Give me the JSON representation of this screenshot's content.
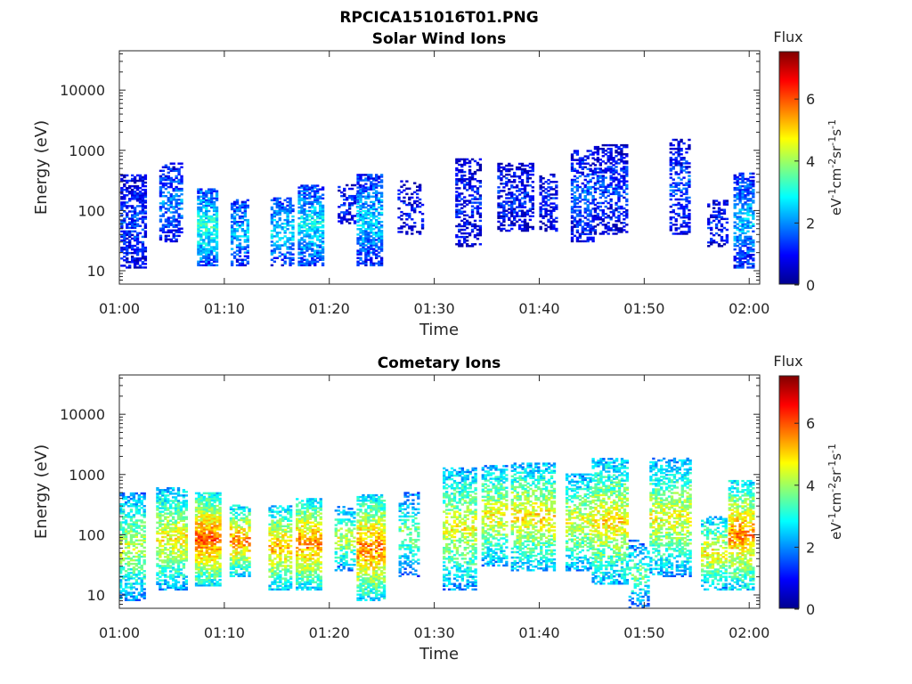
{
  "figure_title": "RPCICA151016T01.PNG",
  "chart_data": [
    {
      "type": "heatmap",
      "title": "Solar Wind Ions",
      "xlabel": "Time",
      "ylabel": "Energy (eV)",
      "x_ticks": [
        "01:00",
        "01:10",
        "01:20",
        "01:30",
        "01:40",
        "01:50",
        "02:00"
      ],
      "y_ticks": [
        "10",
        "100",
        "1000",
        "10000"
      ],
      "x_range_minutes": [
        0,
        61
      ],
      "y_scale": "log",
      "y_range_eV": [
        6,
        45000
      ],
      "colorbar": {
        "title": "Flux",
        "label": "eV-1cm-2sr-1s-1",
        "ticks": [
          "0",
          "2",
          "4",
          "6"
        ],
        "range": [
          0,
          7.5
        ],
        "colormap": "jet"
      },
      "activity": [
        {
          "t0": 0.1,
          "t1": 2.6,
          "e_lo": 11,
          "e_hi": 380,
          "flux": 1.4,
          "density": 0.6
        },
        {
          "t0": 3.8,
          "t1": 6.0,
          "e_lo": 30,
          "e_hi": 600,
          "flux": 1.9,
          "density": 0.55
        },
        {
          "t0": 7.4,
          "t1": 9.4,
          "e_lo": 12,
          "e_hi": 220,
          "flux": 3.2,
          "density": 0.75
        },
        {
          "t0": 10.6,
          "t1": 12.2,
          "e_lo": 12,
          "e_hi": 150,
          "flux": 2.3,
          "density": 0.6
        },
        {
          "t0": 14.4,
          "t1": 16.5,
          "e_lo": 12,
          "e_hi": 160,
          "flux": 2.6,
          "density": 0.55
        },
        {
          "t0": 17.0,
          "t1": 19.3,
          "e_lo": 12,
          "e_hi": 260,
          "flux": 2.8,
          "density": 0.7
        },
        {
          "t0": 20.8,
          "t1": 23.0,
          "e_lo": 60,
          "e_hi": 260,
          "flux": 1.3,
          "density": 0.35
        },
        {
          "t0": 22.6,
          "t1": 25.0,
          "e_lo": 12,
          "e_hi": 400,
          "flux": 2.5,
          "density": 0.65
        },
        {
          "t0": 26.5,
          "t1": 29.0,
          "e_lo": 40,
          "e_hi": 300,
          "flux": 1.0,
          "density": 0.3
        },
        {
          "t0": 32.0,
          "t1": 34.3,
          "e_lo": 25,
          "e_hi": 700,
          "flux": 1.1,
          "density": 0.45
        },
        {
          "t0": 36.0,
          "t1": 39.5,
          "e_lo": 45,
          "e_hi": 600,
          "flux": 1.2,
          "density": 0.5
        },
        {
          "t0": 40.0,
          "t1": 41.6,
          "e_lo": 45,
          "e_hi": 400,
          "flux": 1.2,
          "density": 0.45
        },
        {
          "t0": 43.0,
          "t1": 45.2,
          "e_lo": 30,
          "e_hi": 1000,
          "flux": 1.7,
          "density": 0.55
        },
        {
          "t0": 45.2,
          "t1": 48.3,
          "e_lo": 40,
          "e_hi": 1200,
          "flux": 1.4,
          "density": 0.5
        },
        {
          "t0": 52.4,
          "t1": 54.2,
          "e_lo": 40,
          "e_hi": 1500,
          "flux": 1.5,
          "density": 0.5
        },
        {
          "t0": 56.0,
          "t1": 58.0,
          "e_lo": 25,
          "e_hi": 150,
          "flux": 1.2,
          "density": 0.45
        },
        {
          "t0": 58.5,
          "t1": 60.3,
          "e_lo": 11,
          "e_hi": 400,
          "flux": 2.4,
          "density": 0.65
        }
      ]
    },
    {
      "type": "heatmap",
      "title": "Cometary Ions",
      "xlabel": "Time",
      "ylabel": "Energy (eV)",
      "x_ticks": [
        "01:00",
        "01:10",
        "01:20",
        "01:30",
        "01:40",
        "01:50",
        "02:00"
      ],
      "y_ticks": [
        "10",
        "100",
        "1000",
        "10000"
      ],
      "x_range_minutes": [
        0,
        61
      ],
      "y_scale": "log",
      "y_range_eV": [
        6,
        45000
      ],
      "colorbar": {
        "title": "Flux",
        "label": "eV-1cm-2sr-1s-1",
        "ticks": [
          "0",
          "2",
          "4",
          "6"
        ],
        "range": [
          0,
          7.5
        ],
        "colormap": "jet"
      },
      "activity": [
        {
          "t0": 0.0,
          "t1": 2.5,
          "e_lo": 8,
          "e_hi": 500,
          "flux": 4.3,
          "density": 0.55
        },
        {
          "t0": 3.5,
          "t1": 6.5,
          "e_lo": 12,
          "e_hi": 600,
          "flux": 4.8,
          "density": 0.65
        },
        {
          "t0": 7.2,
          "t1": 9.6,
          "e_lo": 14,
          "e_hi": 500,
          "flux": 6.0,
          "density": 0.85
        },
        {
          "t0": 10.5,
          "t1": 12.3,
          "e_lo": 20,
          "e_hi": 300,
          "flux": 5.6,
          "density": 0.65
        },
        {
          "t0": 14.2,
          "t1": 16.3,
          "e_lo": 12,
          "e_hi": 300,
          "flux": 5.3,
          "density": 0.6
        },
        {
          "t0": 16.8,
          "t1": 19.3,
          "e_lo": 12,
          "e_hi": 400,
          "flux": 5.7,
          "density": 0.7
        },
        {
          "t0": 20.5,
          "t1": 22.3,
          "e_lo": 25,
          "e_hi": 300,
          "flux": 4.3,
          "density": 0.45
        },
        {
          "t0": 22.6,
          "t1": 25.3,
          "e_lo": 8,
          "e_hi": 450,
          "flux": 5.7,
          "density": 0.7
        },
        {
          "t0": 26.6,
          "t1": 28.6,
          "e_lo": 20,
          "e_hi": 500,
          "flux": 3.8,
          "density": 0.4
        },
        {
          "t0": 30.8,
          "t1": 34.0,
          "e_lo": 12,
          "e_hi": 1300,
          "flux": 4.6,
          "density": 0.55
        },
        {
          "t0": 34.5,
          "t1": 37.0,
          "e_lo": 30,
          "e_hi": 1400,
          "flux": 4.7,
          "density": 0.6
        },
        {
          "t0": 37.3,
          "t1": 41.5,
          "e_lo": 25,
          "e_hi": 1500,
          "flux": 4.9,
          "density": 0.55
        },
        {
          "t0": 42.5,
          "t1": 44.8,
          "e_lo": 25,
          "e_hi": 1000,
          "flux": 4.6,
          "density": 0.55
        },
        {
          "t0": 45.0,
          "t1": 48.3,
          "e_lo": 15,
          "e_hi": 1800,
          "flux": 4.9,
          "density": 0.6
        },
        {
          "t0": 48.5,
          "t1": 50.3,
          "e_lo": 6,
          "e_hi": 80,
          "flux": 3.6,
          "density": 0.4
        },
        {
          "t0": 50.5,
          "t1": 54.5,
          "e_lo": 20,
          "e_hi": 1800,
          "flux": 4.6,
          "density": 0.55
        },
        {
          "t0": 55.4,
          "t1": 57.8,
          "e_lo": 12,
          "e_hi": 200,
          "flux": 4.8,
          "density": 0.5
        },
        {
          "t0": 58.0,
          "t1": 60.5,
          "e_lo": 12,
          "e_hi": 800,
          "flux": 5.6,
          "density": 0.65
        }
      ]
    }
  ]
}
